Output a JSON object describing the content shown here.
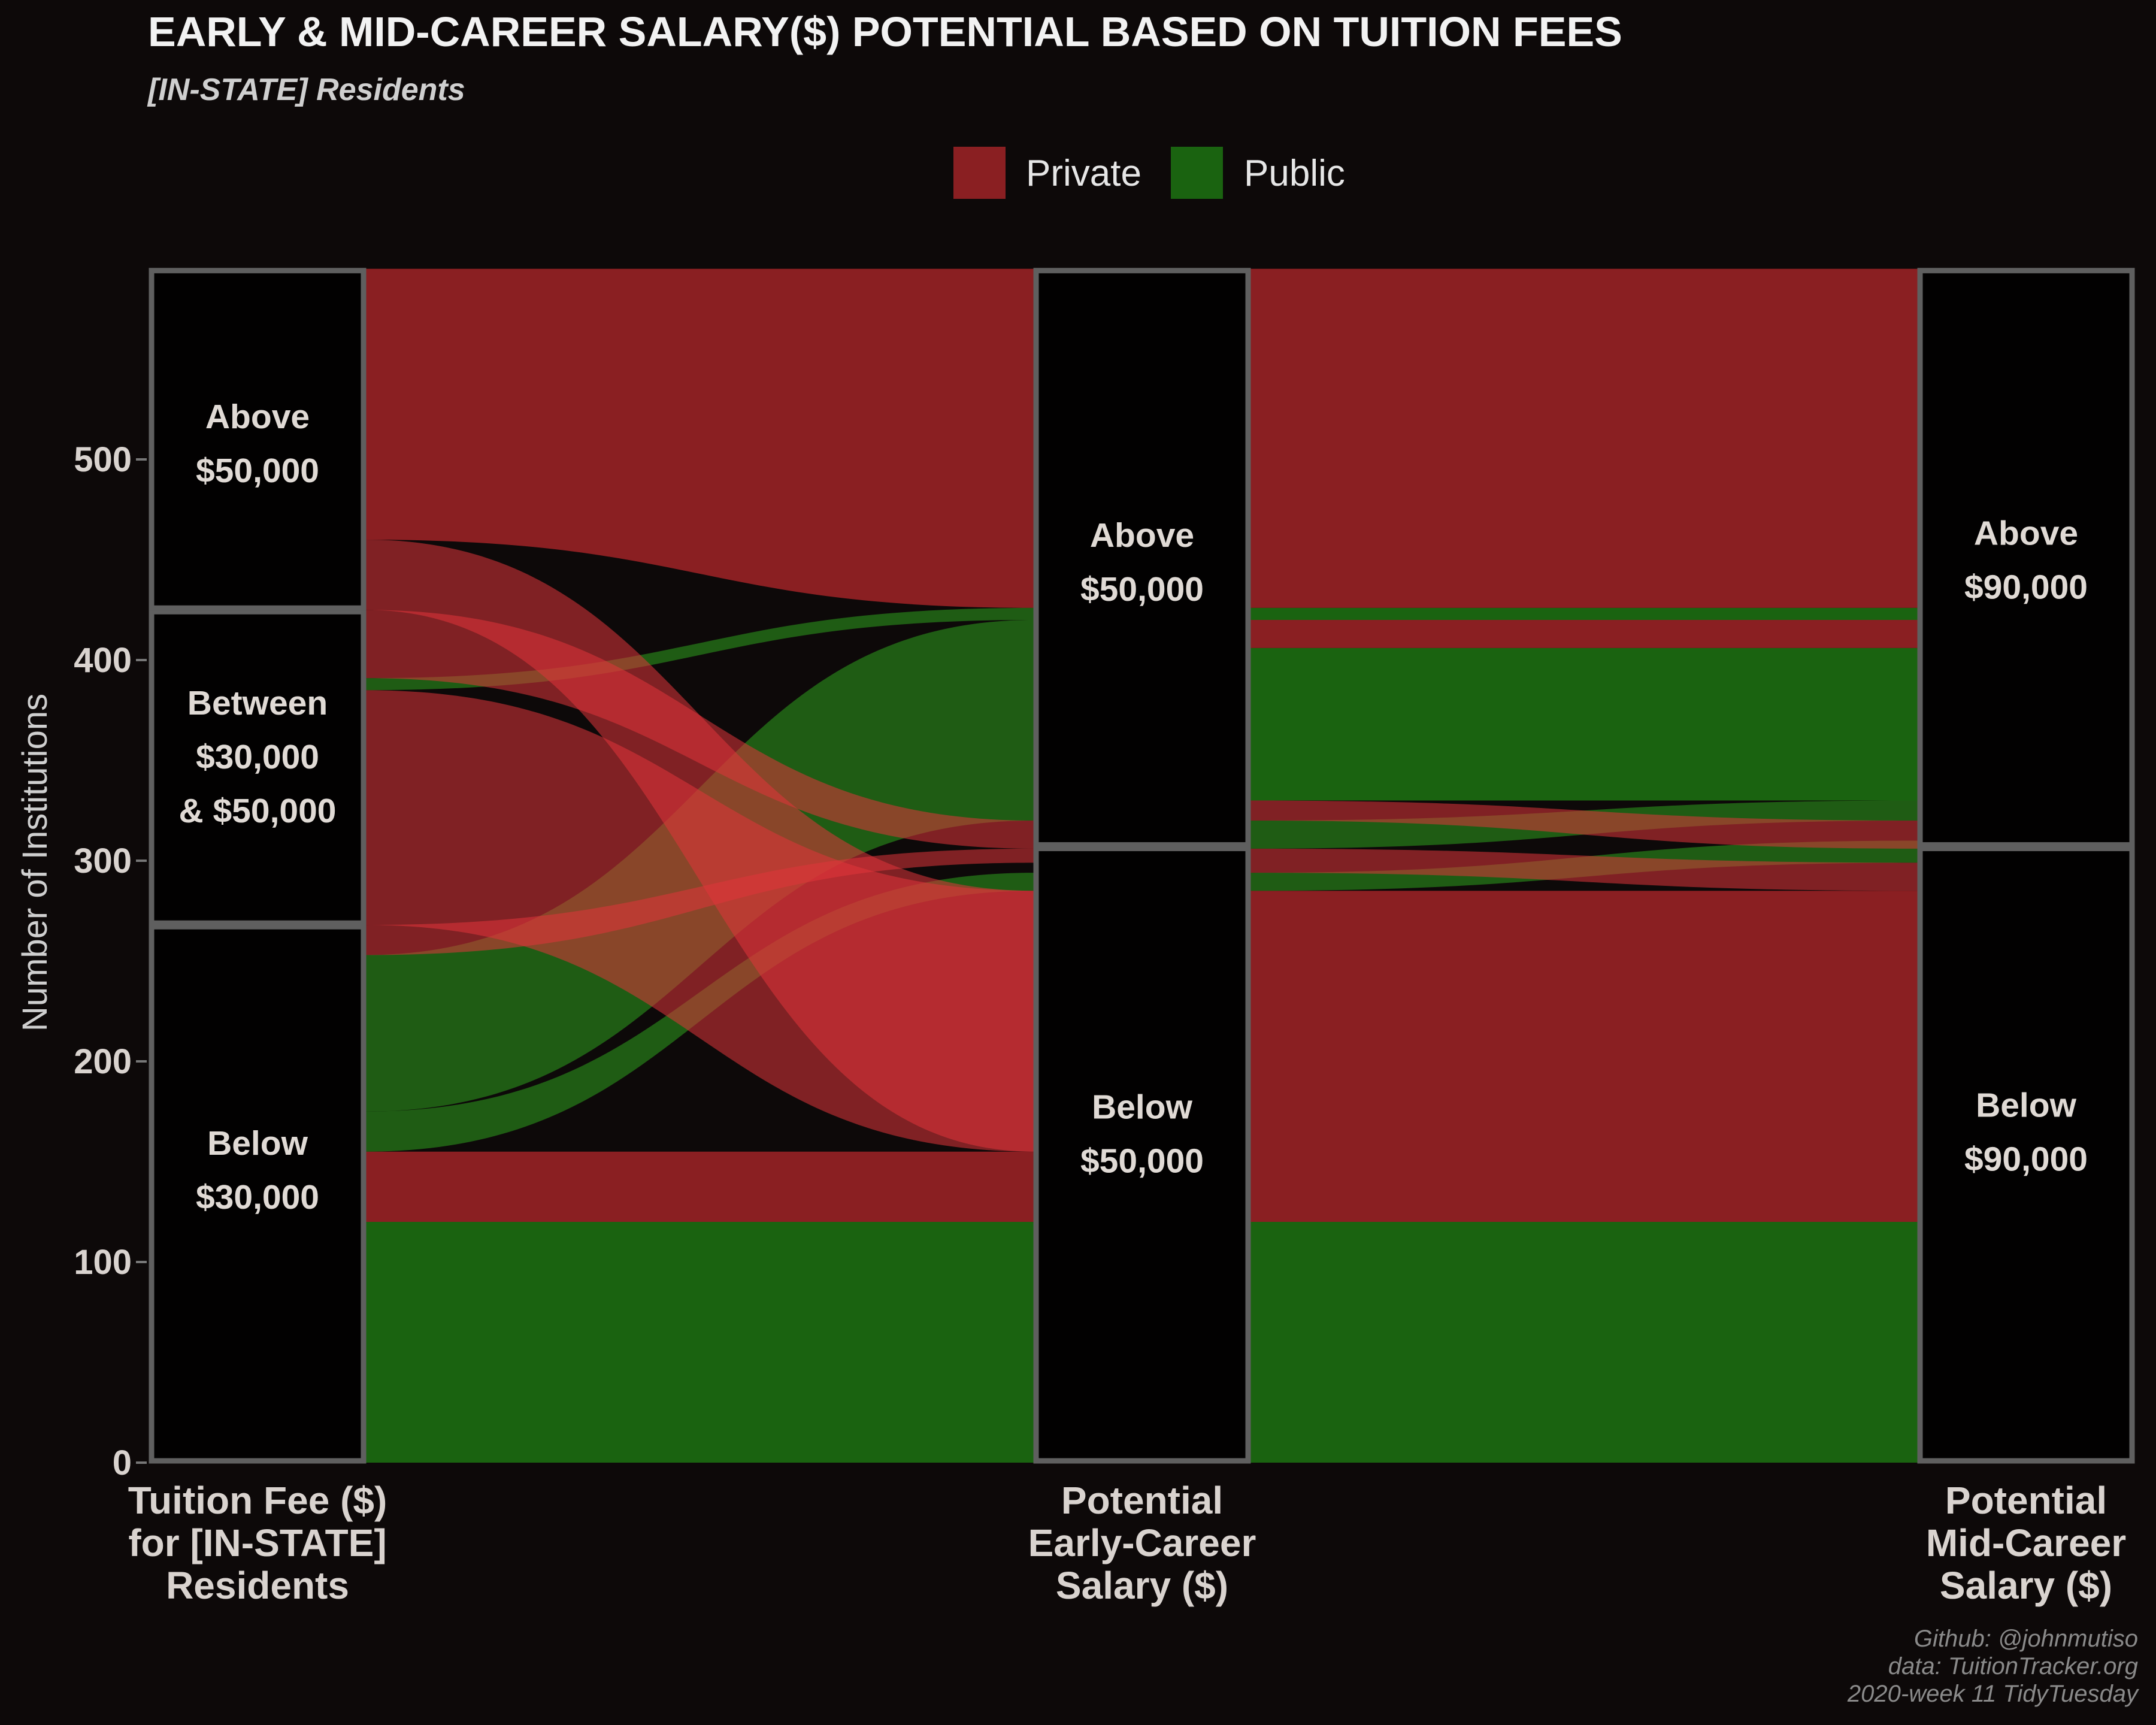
{
  "title": "EARLY & MID-CAREER SALARY($) POTENTIAL BASED ON TUITION FEES",
  "subtitle": "[IN-STATE] Residents",
  "legend": {
    "items": [
      {
        "label": "Private",
        "color": "#8a1f22"
      },
      {
        "label": "Public",
        "color": "#1a6310"
      }
    ]
  },
  "caption": {
    "line1": "Github: @johnmutiso",
    "line2": "data: TuitionTracker.org",
    "line3": "2020-week 11 TidyTuesday"
  },
  "colors": {
    "background": "#0d0909",
    "private": "#8a1f22",
    "public": "#1a6310",
    "private_highlight": "#e0343a",
    "public_highlight": "#2fa01d",
    "stratum_box": "#5f5f5f"
  },
  "chart_data": {
    "type": "alluvial",
    "ylabel": "Number of Institutions",
    "ylim": [
      0,
      600
    ],
    "yticks": [
      0,
      100,
      200,
      300,
      400,
      500
    ],
    "axes": [
      {
        "name": "Tuition Fee ($) for [IN-STATE] Residents",
        "label_lines": [
          "Tuition Fee ($)",
          "for [IN-STATE]",
          "Residents"
        ],
        "strata": [
          {
            "key": "below_30k",
            "label_lines": [
              "Below",
              "$30,000"
            ],
            "range": [
              0,
              268
            ],
            "label_y": 146
          },
          {
            "key": "between",
            "label_lines": [
              "Between",
              "$30,000",
              "& $50,000"
            ],
            "range": [
              268,
              425
            ],
            "label_y": 352
          },
          {
            "key": "above_50k",
            "label_lines": [
              "Above",
              "$50,000"
            ],
            "range": [
              425,
              595
            ],
            "label_y": 508
          }
        ]
      },
      {
        "name": "Potential Early-Career Salary ($)",
        "label_lines": [
          "Potential",
          "Early-Career",
          "Salary ($)"
        ],
        "strata": [
          {
            "key": "below_50k",
            "label_lines": [
              "Below",
              "$50,000"
            ],
            "range": [
              0,
              307
            ],
            "label_y": 164
          },
          {
            "key": "above_50k",
            "label_lines": [
              "Above",
              "$50,000"
            ],
            "range": [
              307,
              595
            ],
            "label_y": 449
          }
        ]
      },
      {
        "name": "Potential Mid-Career Salary ($)",
        "label_lines": [
          "Potential",
          "Mid-Career",
          "Salary ($)"
        ],
        "strata": [
          {
            "key": "below_90k",
            "label_lines": [
              "Below",
              "$90,000"
            ],
            "range": [
              0,
              307
            ],
            "label_y": 165
          },
          {
            "key": "above_90k",
            "label_lines": [
              "Above",
              "$90,000"
            ],
            "range": [
              307,
              595
            ],
            "label_y": 450
          }
        ]
      }
    ],
    "flows_axis1_axis2": [
      {
        "type": "Public",
        "l": [
          0,
          120
        ],
        "r": [
          0,
          120
        ]
      },
      {
        "type": "Private",
        "l": [
          120,
          155
        ],
        "r": [
          120,
          155
        ]
      },
      {
        "type": "Public",
        "l": [
          155,
          175
        ],
        "r": [
          285,
          294
        ],
        "style": "cross"
      },
      {
        "type": "Public",
        "l": [
          175,
          253
        ],
        "r": [
          320,
          420
        ],
        "style": "cross"
      },
      {
        "type": "Private",
        "l": [
          253,
          268
        ],
        "r": [
          299,
          306
        ],
        "style": "cross"
      },
      {
        "type": "Private",
        "l": [
          268,
          385
        ],
        "r": [
          155,
          285
        ],
        "style": "cross"
      },
      {
        "type": "Public",
        "l": [
          385,
          391
        ],
        "r": [
          420,
          426
        ],
        "style": "cross"
      },
      {
        "type": "Private",
        "l": [
          391,
          425
        ],
        "r": [
          306,
          320
        ],
        "style": "cross"
      },
      {
        "type": "Private",
        "l": [
          425,
          460
        ],
        "r": [
          155,
          285
        ],
        "style": "cross"
      },
      {
        "type": "Private",
        "l": [
          460,
          595
        ],
        "r": [
          426,
          595
        ]
      }
    ],
    "flows_axis2_axis3": [
      {
        "type": "Public",
        "l": [
          0,
          120
        ],
        "r": [
          0,
          120
        ]
      },
      {
        "type": "Private",
        "l": [
          120,
          285
        ],
        "r": [
          120,
          285
        ]
      },
      {
        "type": "Public",
        "l": [
          285,
          294
        ],
        "r": [
          299,
          310
        ],
        "style": "cross"
      },
      {
        "type": "Private",
        "l": [
          294,
          306
        ],
        "r": [
          285,
          299
        ],
        "style": "cross"
      },
      {
        "type": "Public",
        "l": [
          306,
          320
        ],
        "r": [
          320,
          330
        ],
        "style": "cross"
      },
      {
        "type": "Private",
        "l": [
          320,
          330
        ],
        "r": [
          306,
          320
        ],
        "style": "cross"
      },
      {
        "type": "Public",
        "l": [
          330,
          406
        ],
        "r": [
          330,
          406
        ]
      },
      {
        "type": "Private",
        "l": [
          406,
          420
        ],
        "r": [
          406,
          420
        ]
      },
      {
        "type": "Public",
        "l": [
          420,
          426
        ],
        "r": [
          420,
          426
        ]
      },
      {
        "type": "Private",
        "l": [
          426,
          595
        ],
        "r": [
          426,
          595
        ]
      }
    ]
  }
}
